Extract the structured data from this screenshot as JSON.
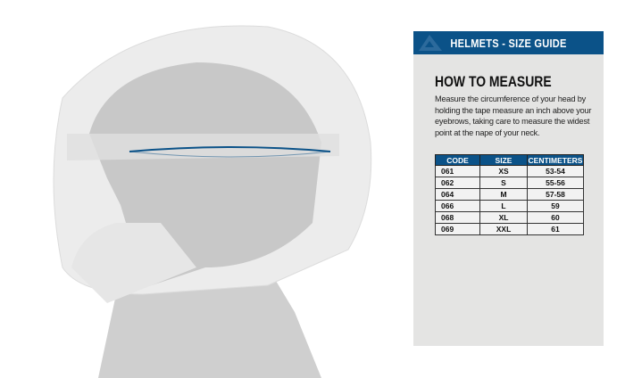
{
  "header": {
    "title": "HELMETS - SIZE GUIDE",
    "logo_icon": "brand-logo-icon"
  },
  "how_to": {
    "title": "HOW TO MEASURE",
    "text": "Measure the circumference of your head by holding the tape measure an inch above your eyebrows, taking care to measure the widest point at the nape of your neck."
  },
  "table": {
    "headers": [
      "CODE",
      "SIZE",
      "CENTIMETERS"
    ],
    "rows": [
      [
        "061",
        "XS",
        "53-54"
      ],
      [
        "062",
        "S",
        "55-56"
      ],
      [
        "064",
        "M",
        "57-58"
      ],
      [
        "066",
        "L",
        "59"
      ],
      [
        "068",
        "XL",
        "60"
      ],
      [
        "069",
        "XXL",
        "61"
      ]
    ]
  },
  "colors": {
    "brand": "#0b5288",
    "panel": "#e4e4e3"
  }
}
